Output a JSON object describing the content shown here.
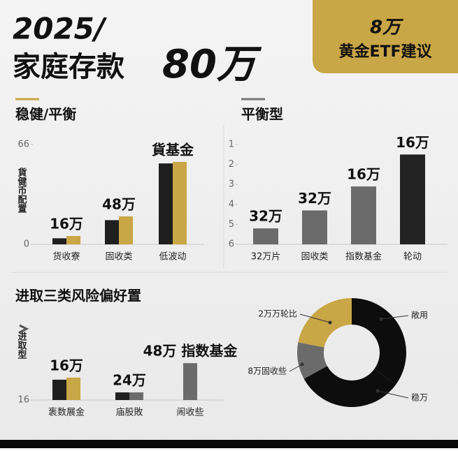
{
  "header": {
    "title_line1": "2025/",
    "title_line2": "家庭存款",
    "title_big": "80万",
    "badge_line1": "8万",
    "badge_line2": "黄金ETF建议"
  },
  "chart_data": [
    {
      "type": "bar",
      "title": "稳健/平衡",
      "ylabel": "貨健币配置",
      "categories": [
        "货收寮",
        "固收类",
        "低波动"
      ],
      "group_labels": [
        "16万",
        "48万",
        "貨基金"
      ],
      "series": [
        {
          "color": "#1f1f1f",
          "values": [
            4,
            16,
            53.5
          ]
        },
        {
          "color": "#c9a646",
          "values": [
            5.5,
            18.5,
            54.5
          ]
        }
      ],
      "ylim": [
        0,
        66
      ],
      "yticks": [
        0,
        66
      ],
      "grid": false
    },
    {
      "type": "bar",
      "title": "平衡型",
      "categories": [
        "32万片",
        "固收类",
        "指数基金",
        "轮动"
      ],
      "group_labels": [
        "32万",
        "32万",
        "16万",
        "16万"
      ],
      "series": [
        {
          "colors": [
            "#6b6b6b",
            "#6b6b6b",
            "#6b6b6b",
            "#232323"
          ],
          "values": [
            5.2,
            4.3,
            3.1,
            1.5
          ]
        }
      ],
      "ylim": [
        6,
        1
      ],
      "yticks": [
        1,
        2,
        3,
        4,
        5,
        6
      ],
      "grid": false
    },
    {
      "type": "bar",
      "title": "进取三类风险偏好置",
      "ylabel": "进取型",
      "categories": [
        "袠数展金",
        "庙股敗",
        "闹收些"
      ],
      "group_labels": [
        "16万",
        "24万",
        "48万 指数基金"
      ],
      "series": [
        {
          "color": "#1f1f1f",
          "values": [
            20.8,
            17.8,
            null
          ]
        },
        {
          "color": "#c9a646",
          "values": [
            21.3,
            null,
            null
          ]
        },
        {
          "color": "#6b6b6b",
          "values": [
            null,
            17.8,
            24.7
          ]
        }
      ],
      "ylim": [
        16,
        30
      ],
      "yticks": [
        16
      ],
      "grid": false
    },
    {
      "type": "pie",
      "donut": true,
      "labels": [
        "敞用",
        "稳万",
        "8万固收些",
        "2万万轮比"
      ],
      "values": [
        35,
        32,
        11,
        22
      ],
      "colors": [
        "#0d0d0d",
        "#0d0d0d",
        "#6b6b6b",
        "#c9a646"
      ]
    }
  ]
}
